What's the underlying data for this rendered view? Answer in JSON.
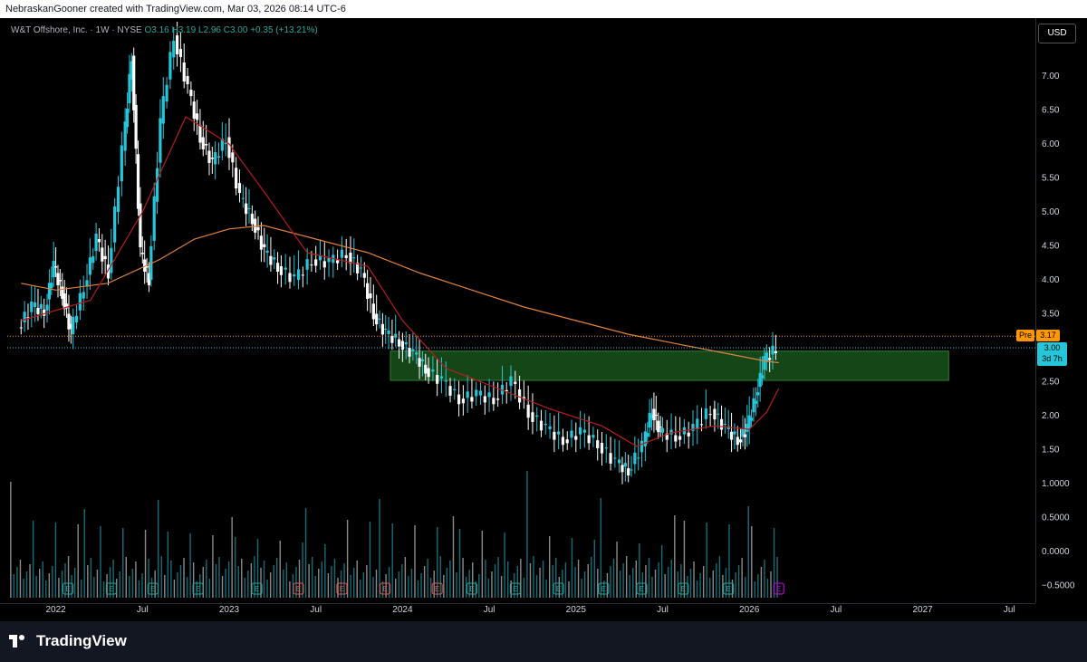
{
  "header": {
    "attribution": "NebraskanGooner created with TradingView.com, Mar 03, 2026 08:14 UTC-6"
  },
  "legend": {
    "symbol": "W&T Offshore, Inc. · 1W · NYSE",
    "ohlc": "O3.16  H3.19  L2.96  C3.00  +0.35 (+13.21%)"
  },
  "currency_button": "USD",
  "price_tags": {
    "pre_label": "Pre",
    "pre_value": "3.17",
    "last_value": "3.00",
    "countdown": "3d 7h"
  },
  "footer": {
    "brand": "TradingView"
  },
  "colors": {
    "up": "#26c6da",
    "down": "#ffffff",
    "ma_long": "#e0823d",
    "ma_short": "#b71c1c",
    "zone": "#1b5e20",
    "pre": "#ff9800",
    "earnings_green": "#26a69a",
    "earnings_red": "#ef5350",
    "earnings_purple": "#d500f9"
  },
  "chart_data": {
    "type": "candlestick",
    "title": "W&T Offshore, Inc.",
    "interval": "1W",
    "exchange": "NYSE",
    "price_ticks": [
      "7.00",
      "6.50",
      "6.00",
      "5.50",
      "5.00",
      "4.50",
      "4.00",
      "3.50",
      "3.00",
      "2.50",
      "2.00",
      "1.50",
      "1.0000",
      "0.5000",
      "0.0000",
      "−0.5000"
    ],
    "time_ticks": [
      "2022",
      "Jul",
      "2023",
      "Jul",
      "2024",
      "Jul",
      "2025",
      "Jul",
      "2026",
      "Jul",
      "2027",
      "Jul"
    ],
    "resistance_zone": [
      2.52,
      2.95
    ],
    "pre_market_price": 3.17,
    "last_price": 3.0,
    "series": [
      {
        "t": 2021.8,
        "p": 3.3
      },
      {
        "t": 2021.88,
        "p": 3.6
      },
      {
        "t": 2021.95,
        "p": 3.55
      },
      {
        "t": 2022.0,
        "p": 4.2
      },
      {
        "t": 2022.05,
        "p": 3.8
      },
      {
        "t": 2022.1,
        "p": 3.2
      },
      {
        "t": 2022.18,
        "p": 3.9
      },
      {
        "t": 2022.25,
        "p": 4.6
      },
      {
        "t": 2022.32,
        "p": 4.1
      },
      {
        "t": 2022.4,
        "p": 5.9
      },
      {
        "t": 2022.45,
        "p": 7.3
      },
      {
        "t": 2022.5,
        "p": 4.4
      },
      {
        "t": 2022.55,
        "p": 4.0
      },
      {
        "t": 2022.62,
        "p": 6.3
      },
      {
        "t": 2022.7,
        "p": 7.6
      },
      {
        "t": 2022.78,
        "p": 6.8
      },
      {
        "t": 2022.85,
        "p": 6.1
      },
      {
        "t": 2022.92,
        "p": 5.7
      },
      {
        "t": 2023.0,
        "p": 6.1
      },
      {
        "t": 2023.08,
        "p": 5.2
      },
      {
        "t": 2023.15,
        "p": 4.9
      },
      {
        "t": 2023.22,
        "p": 4.4
      },
      {
        "t": 2023.3,
        "p": 4.2
      },
      {
        "t": 2023.4,
        "p": 4.0
      },
      {
        "t": 2023.5,
        "p": 4.3
      },
      {
        "t": 2023.6,
        "p": 4.25
      },
      {
        "t": 2023.7,
        "p": 4.4
      },
      {
        "t": 2023.78,
        "p": 4.1
      },
      {
        "t": 2023.85,
        "p": 3.5
      },
      {
        "t": 2023.92,
        "p": 3.2
      },
      {
        "t": 2024.0,
        "p": 3.1
      },
      {
        "t": 2024.08,
        "p": 2.9
      },
      {
        "t": 2024.15,
        "p": 2.7
      },
      {
        "t": 2024.25,
        "p": 2.5
      },
      {
        "t": 2024.35,
        "p": 2.25
      },
      {
        "t": 2024.45,
        "p": 2.3
      },
      {
        "t": 2024.55,
        "p": 2.25
      },
      {
        "t": 2024.65,
        "p": 2.5
      },
      {
        "t": 2024.75,
        "p": 2.05
      },
      {
        "t": 2024.85,
        "p": 1.8
      },
      {
        "t": 2024.95,
        "p": 1.65
      },
      {
        "t": 2025.05,
        "p": 1.75
      },
      {
        "t": 2025.15,
        "p": 1.6
      },
      {
        "t": 2025.25,
        "p": 1.3
      },
      {
        "t": 2025.32,
        "p": 1.2
      },
      {
        "t": 2025.4,
        "p": 1.55
      },
      {
        "t": 2025.45,
        "p": 2.1
      },
      {
        "t": 2025.5,
        "p": 1.75
      },
      {
        "t": 2025.6,
        "p": 1.7
      },
      {
        "t": 2025.7,
        "p": 1.8
      },
      {
        "t": 2025.8,
        "p": 2.1
      },
      {
        "t": 2025.88,
        "p": 1.8
      },
      {
        "t": 2025.95,
        "p": 1.65
      },
      {
        "t": 2026.0,
        "p": 1.8
      },
      {
        "t": 2026.05,
        "p": 2.3
      },
      {
        "t": 2026.1,
        "p": 2.8
      },
      {
        "t": 2026.17,
        "p": 3.0
      }
    ],
    "moving_average_long": [
      {
        "t": 2021.8,
        "p": 3.95
      },
      {
        "t": 2022.0,
        "p": 3.85
      },
      {
        "t": 2022.3,
        "p": 3.95
      },
      {
        "t": 2022.6,
        "p": 4.3
      },
      {
        "t": 2022.8,
        "p": 4.6
      },
      {
        "t": 2023.0,
        "p": 4.75
      },
      {
        "t": 2023.2,
        "p": 4.8
      },
      {
        "t": 2023.5,
        "p": 4.6
      },
      {
        "t": 2023.8,
        "p": 4.4
      },
      {
        "t": 2024.1,
        "p": 4.1
      },
      {
        "t": 2024.4,
        "p": 3.85
      },
      {
        "t": 2024.7,
        "p": 3.6
      },
      {
        "t": 2025.0,
        "p": 3.4
      },
      {
        "t": 2025.3,
        "p": 3.2
      },
      {
        "t": 2025.6,
        "p": 3.05
      },
      {
        "t": 2025.9,
        "p": 2.9
      },
      {
        "t": 2026.1,
        "p": 2.8
      },
      {
        "t": 2026.17,
        "p": 2.78
      }
    ],
    "moving_average_short": [
      {
        "t": 2021.8,
        "p": 3.4
      },
      {
        "t": 2022.2,
        "p": 3.7
      },
      {
        "t": 2022.5,
        "p": 5.0
      },
      {
        "t": 2022.75,
        "p": 6.4
      },
      {
        "t": 2023.0,
        "p": 6.0
      },
      {
        "t": 2023.2,
        "p": 5.3
      },
      {
        "t": 2023.45,
        "p": 4.4
      },
      {
        "t": 2023.8,
        "p": 4.2
      },
      {
        "t": 2024.0,
        "p": 3.4
      },
      {
        "t": 2024.25,
        "p": 2.7
      },
      {
        "t": 2024.55,
        "p": 2.4
      },
      {
        "t": 2024.85,
        "p": 2.1
      },
      {
        "t": 2025.15,
        "p": 1.85
      },
      {
        "t": 2025.35,
        "p": 1.55
      },
      {
        "t": 2025.55,
        "p": 1.75
      },
      {
        "t": 2025.8,
        "p": 1.85
      },
      {
        "t": 2026.0,
        "p": 1.8
      },
      {
        "t": 2026.1,
        "p": 2.05
      },
      {
        "t": 2026.17,
        "p": 2.4
      }
    ],
    "earnings_events": [
      {
        "t": 2022.07,
        "type": "E",
        "color": "green"
      },
      {
        "t": 2022.32,
        "type": "E",
        "color": "green"
      },
      {
        "t": 2022.56,
        "type": "E",
        "color": "green"
      },
      {
        "t": 2022.82,
        "type": "E",
        "color": "green"
      },
      {
        "t": 2023.16,
        "type": "E",
        "color": "green"
      },
      {
        "t": 2023.4,
        "type": "E",
        "color": "red"
      },
      {
        "t": 2023.65,
        "type": "E",
        "color": "red"
      },
      {
        "t": 2023.9,
        "type": "E",
        "color": "red"
      },
      {
        "t": 2024.2,
        "type": "E",
        "color": "red"
      },
      {
        "t": 2024.4,
        "type": "E",
        "color": "green"
      },
      {
        "t": 2024.65,
        "type": "E",
        "color": "green"
      },
      {
        "t": 2024.9,
        "type": "E",
        "color": "green"
      },
      {
        "t": 2025.16,
        "type": "E",
        "color": "green"
      },
      {
        "t": 2025.38,
        "type": "E",
        "color": "green"
      },
      {
        "t": 2025.62,
        "type": "E",
        "color": "green"
      },
      {
        "t": 2025.88,
        "type": "E",
        "color": "green"
      },
      {
        "t": 2026.17,
        "type": "E",
        "color": "purple"
      }
    ],
    "volume_scale": "right axis shares volume; bars in lower pane",
    "grid": false
  }
}
